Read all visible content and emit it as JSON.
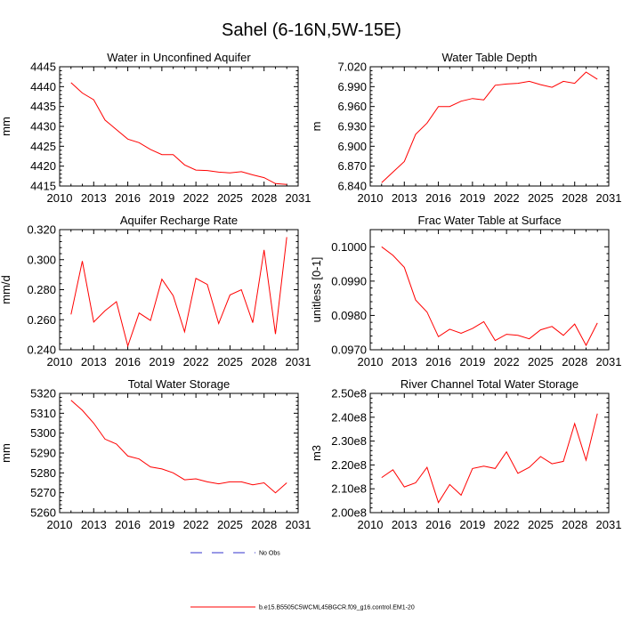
{
  "figure_title": "Sahel (6-16N,5W-15E)",
  "legend": {
    "items": [
      {
        "label": "No Obs",
        "color": "#3333cc",
        "style": "dashed"
      },
      {
        "label": "b.e15.B5505C5WCML45BGCR.f09_g16.control.EM1-20",
        "color": "#ff0000",
        "style": "solid"
      }
    ]
  },
  "chart_data": [
    {
      "type": "line",
      "title": "Water in Unconfined Aquifer",
      "ylabel": "mm",
      "xlim": [
        2010,
        2031
      ],
      "ylim": [
        4415,
        4445
      ],
      "xticks": [
        "2010",
        "2013",
        "2016",
        "2019",
        "2022",
        "2025",
        "2028",
        "2031"
      ],
      "yticks": [
        "4415",
        "4420",
        "4425",
        "4430",
        "4435",
        "4440",
        "4445"
      ],
      "x": [
        2011,
        2012,
        2013,
        2014,
        2015,
        2016,
        2017,
        2018,
        2019,
        2020,
        2021,
        2022,
        2023,
        2024,
        2025,
        2026,
        2027,
        2028,
        2029,
        2030
      ],
      "series": [
        {
          "name": "b.e15.B5505C5WCML45BGCR.f09_g16.control.EM1-20",
          "color": "#ff0000",
          "values": [
            4441.0,
            4438.4,
            4436.7,
            4431.6,
            4429.2,
            4426.8,
            4425.9,
            4424.2,
            4422.9,
            4422.9,
            4420.3,
            4419.0,
            4418.9,
            4418.5,
            4418.3,
            4418.6,
            4417.8,
            4417.1,
            4415.6,
            4415.4
          ]
        }
      ]
    },
    {
      "type": "line",
      "title": "Water Table Depth",
      "ylabel": "m",
      "xlim": [
        2010,
        2031
      ],
      "ylim": [
        6.84,
        7.02
      ],
      "xticks": [
        "2010",
        "2013",
        "2016",
        "2019",
        "2022",
        "2025",
        "2028",
        "2031"
      ],
      "yticks": [
        "6.840",
        "6.870",
        "6.900",
        "6.930",
        "6.960",
        "6.990",
        "7.020"
      ],
      "x": [
        2011,
        2012,
        2013,
        2014,
        2015,
        2016,
        2017,
        2018,
        2019,
        2020,
        2021,
        2022,
        2023,
        2024,
        2025,
        2026,
        2027,
        2028,
        2029,
        2030
      ],
      "series": [
        {
          "name": "b.e15.B5505C5WCML45BGCR.f09_g16.control.EM1-20",
          "color": "#ff0000",
          "values": [
            6.845,
            6.861,
            6.877,
            6.918,
            6.935,
            6.96,
            6.96,
            6.968,
            6.972,
            6.97,
            6.992,
            6.994,
            6.995,
            6.998,
            6.993,
            6.989,
            6.998,
            6.995,
            7.012,
            7.001
          ]
        }
      ]
    },
    {
      "type": "line",
      "title": "Aquifer Recharge Rate",
      "ylabel": "mm/d",
      "xlim": [
        2010,
        2031
      ],
      "ylim": [
        0.24,
        0.32
      ],
      "xticks": [
        "2010",
        "2013",
        "2016",
        "2019",
        "2022",
        "2025",
        "2028",
        "2031"
      ],
      "yticks": [
        "0.240",
        "0.260",
        "0.280",
        "0.300",
        "0.320"
      ],
      "x": [
        2011,
        2012,
        2013,
        2014,
        2015,
        2016,
        2017,
        2018,
        2019,
        2020,
        2021,
        2022,
        2023,
        2024,
        2025,
        2026,
        2027,
        2028,
        2029,
        2030
      ],
      "series": [
        {
          "name": "b.e15.B5505C5WCML45BGCR.f09_g16.control.EM1-20",
          "color": "#ff0000",
          "values": [
            0.2635,
            0.299,
            0.2585,
            0.266,
            0.272,
            0.2425,
            0.2645,
            0.2595,
            0.287,
            0.276,
            0.252,
            0.2875,
            0.2835,
            0.2575,
            0.2765,
            0.28,
            0.258,
            0.3065,
            0.2505,
            0.315
          ]
        }
      ]
    },
    {
      "type": "line",
      "title": "Frac Water Table at Surface",
      "ylabel": "unitless [0-1]",
      "xlim": [
        2010,
        2031
      ],
      "ylim": [
        0.097,
        0.1005
      ],
      "xticks": [
        "2010",
        "2013",
        "2016",
        "2019",
        "2022",
        "2025",
        "2028",
        "2031"
      ],
      "yticks": [
        "0.0970",
        "0.0980",
        "0.0990",
        "0.1000"
      ],
      "x": [
        2011,
        2012,
        2013,
        2014,
        2015,
        2016,
        2017,
        2018,
        2019,
        2020,
        2021,
        2022,
        2023,
        2024,
        2025,
        2026,
        2027,
        2028,
        2029,
        2030
      ],
      "series": [
        {
          "name": "b.e15.B5505C5WCML45BGCR.f09_g16.control.EM1-20",
          "color": "#ff0000",
          "values": [
            0.1,
            0.09975,
            0.0994,
            0.09845,
            0.0981,
            0.09738,
            0.0976,
            0.09748,
            0.09762,
            0.09782,
            0.09727,
            0.09745,
            0.09742,
            0.09732,
            0.09758,
            0.09768,
            0.09742,
            0.09775,
            0.09713,
            0.09778
          ]
        }
      ]
    },
    {
      "type": "line",
      "title": "Total Water Storage",
      "ylabel": "mm",
      "xlim": [
        2010,
        2031
      ],
      "ylim": [
        5260,
        5320
      ],
      "xticks": [
        "2010",
        "2013",
        "2016",
        "2019",
        "2022",
        "2025",
        "2028",
        "2031"
      ],
      "yticks": [
        "5260",
        "5270",
        "5280",
        "5290",
        "5300",
        "5310",
        "5320"
      ],
      "x": [
        2011,
        2012,
        2013,
        2014,
        2015,
        2016,
        2017,
        2018,
        2019,
        2020,
        2021,
        2022,
        2023,
        2024,
        2025,
        2026,
        2027,
        2028,
        2029,
        2030
      ],
      "series": [
        {
          "name": "b.e15.B5505C5WCML45BGCR.f09_g16.control.EM1-20",
          "color": "#ff0000",
          "values": [
            5316.5,
            5311.5,
            5305.0,
            5297.0,
            5294.5,
            5288.5,
            5287.0,
            5283.0,
            5282.0,
            5280.0,
            5276.5,
            5277.0,
            5275.5,
            5274.5,
            5275.5,
            5275.5,
            5274.0,
            5275.0,
            5270.0,
            5275.0
          ]
        }
      ]
    },
    {
      "type": "line",
      "title": "River Channel Total Water Storage",
      "ylabel": "m3",
      "xlim": [
        2010,
        2031
      ],
      "ylim": [
        200000000.0,
        250000000.0
      ],
      "xticks": [
        "2010",
        "2013",
        "2016",
        "2019",
        "2022",
        "2025",
        "2028",
        "2031"
      ],
      "yticks": [
        "2.00e8",
        "2.10e8",
        "2.20e8",
        "2.30e8",
        "2.40e8",
        "2.50e8"
      ],
      "x": [
        2011,
        2012,
        2013,
        2014,
        2015,
        2016,
        2017,
        2018,
        2019,
        2020,
        2021,
        2022,
        2023,
        2024,
        2025,
        2026,
        2027,
        2028,
        2029,
        2030
      ],
      "series": [
        {
          "name": "b.e15.B5505C5WCML45BGCR.f09_g16.control.EM1-20",
          "color": "#ff0000",
          "values": [
            214700000.0,
            218000000.0,
            210800000.0,
            212500000.0,
            219000000.0,
            204200000.0,
            211800000.0,
            207300000.0,
            218500000.0,
            219500000.0,
            218500000.0,
            225500000.0,
            216500000.0,
            219000000.0,
            223500000.0,
            220500000.0,
            221500000.0,
            237300000.0,
            222000000.0,
            241500000.0
          ]
        }
      ]
    }
  ]
}
